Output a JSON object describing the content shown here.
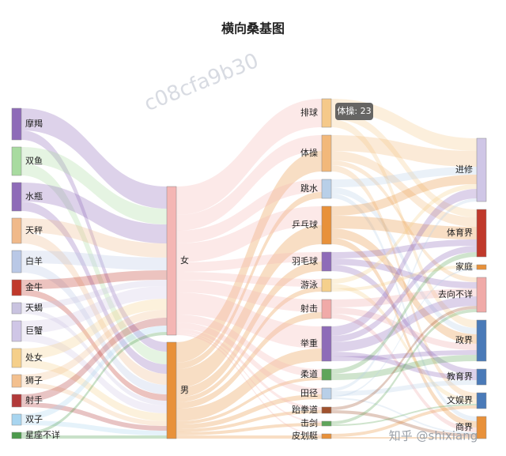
{
  "chart_data": {
    "type": "sankey",
    "title": "横向桑基图",
    "tooltip": "体操: 23",
    "watermarks": [
      "c08cfa9b30",
      "知乎 @shixiang"
    ],
    "nodes": [
      {
        "name": "摩羯",
        "color": "#8e6bb8"
      },
      {
        "name": "双鱼",
        "color": "#a8dba0"
      },
      {
        "name": "水瓶",
        "color": "#8e6bb8"
      },
      {
        "name": "天秤",
        "color": "#f0b98a"
      },
      {
        "name": "白羊",
        "color": "#b9c8e6"
      },
      {
        "name": "金牛",
        "color": "#c0392b"
      },
      {
        "name": "天蝎",
        "color": "#c9c3e0"
      },
      {
        "name": "巨蟹",
        "color": "#cfc6e6"
      },
      {
        "name": "处女",
        "color": "#f5cf8a"
      },
      {
        "name": "狮子",
        "color": "#f3c08f"
      },
      {
        "name": "射手",
        "color": "#b23a3a"
      },
      {
        "name": "双子",
        "color": "#a8d5f0"
      },
      {
        "name": "星座不详",
        "color": "#4c9a4c"
      },
      {
        "name": "女",
        "color": "#f4b6b4"
      },
      {
        "name": "男",
        "color": "#e8913a"
      },
      {
        "name": "排球",
        "color": "#f5c98a"
      },
      {
        "name": "体操",
        "color": "#f2b87a"
      },
      {
        "name": "跳水",
        "color": "#b8cfe8"
      },
      {
        "name": "乒乓球",
        "color": "#e8913a"
      },
      {
        "name": "羽毛球",
        "color": "#8e6bb8"
      },
      {
        "name": "游泳",
        "color": "#f5d08c"
      },
      {
        "name": "射击",
        "color": "#f0aaa8"
      },
      {
        "name": "举重",
        "color": "#8e6bb8"
      },
      {
        "name": "柔道",
        "color": "#5fa55a"
      },
      {
        "name": "田径",
        "color": "#b8cfe8"
      },
      {
        "name": "跆拳道",
        "color": "#a0522d"
      },
      {
        "name": "击剑",
        "color": "#5fa55a"
      },
      {
        "name": "皮划艇",
        "color": "#e8913a"
      },
      {
        "name": "进修",
        "color": "#cfc6e6"
      },
      {
        "name": "体育界",
        "color": "#c0392b"
      },
      {
        "name": "家庭",
        "color": "#e8913a"
      },
      {
        "name": "去向不详",
        "color": "#f0aaa8"
      },
      {
        "name": "政界",
        "color": "#4a7ab8"
      },
      {
        "name": "教育界",
        "color": "#4a7ab8"
      },
      {
        "name": "文娱界",
        "color": "#4a7ab8"
      },
      {
        "name": "商界",
        "color": "#e8913a"
      }
    ],
    "links": [
      {
        "source": "摩羯",
        "target": "女",
        "value": 14
      },
      {
        "source": "摩羯",
        "target": "男",
        "value": 6
      },
      {
        "source": "双鱼",
        "target": "女",
        "value": 10
      },
      {
        "source": "双鱼",
        "target": "男",
        "value": 8
      },
      {
        "source": "水瓶",
        "target": "女",
        "value": 12
      },
      {
        "source": "水瓶",
        "target": "男",
        "value": 6
      },
      {
        "source": "天秤",
        "target": "女",
        "value": 9
      },
      {
        "source": "天秤",
        "target": "男",
        "value": 7
      },
      {
        "source": "白羊",
        "target": "女",
        "value": 8
      },
      {
        "source": "白羊",
        "target": "男",
        "value": 6
      },
      {
        "source": "金牛",
        "target": "女",
        "value": 6
      },
      {
        "source": "金牛",
        "target": "男",
        "value": 4
      },
      {
        "source": "天蝎",
        "target": "女",
        "value": 4
      },
      {
        "source": "天蝎",
        "target": "男",
        "value": 3
      },
      {
        "source": "巨蟹",
        "target": "女",
        "value": 8
      },
      {
        "source": "巨蟹",
        "target": "男",
        "value": 5
      },
      {
        "source": "处女",
        "target": "女",
        "value": 7
      },
      {
        "source": "处女",
        "target": "男",
        "value": 5
      },
      {
        "source": "狮子",
        "target": "女",
        "value": 5
      },
      {
        "source": "狮子",
        "target": "男",
        "value": 3
      },
      {
        "source": "射手",
        "target": "女",
        "value": 5
      },
      {
        "source": "射手",
        "target": "男",
        "value": 3
      },
      {
        "source": "双子",
        "target": "女",
        "value": 4
      },
      {
        "source": "双子",
        "target": "男",
        "value": 3
      },
      {
        "source": "星座不详",
        "target": "女",
        "value": 2
      },
      {
        "source": "星座不详",
        "target": "男",
        "value": 2
      },
      {
        "source": "女",
        "target": "排球",
        "value": 18
      },
      {
        "source": "女",
        "target": "体操",
        "value": 10
      },
      {
        "source": "男",
        "target": "体操",
        "value": 13
      },
      {
        "source": "女",
        "target": "跳水",
        "value": 8
      },
      {
        "source": "男",
        "target": "跳水",
        "value": 4
      },
      {
        "source": "女",
        "target": "乒乓球",
        "value": 12
      },
      {
        "source": "男",
        "target": "乒乓球",
        "value": 12
      },
      {
        "source": "女",
        "target": "羽毛球",
        "value": 6
      },
      {
        "source": "男",
        "target": "羽毛球",
        "value": 6
      },
      {
        "source": "女",
        "target": "游泳",
        "value": 5
      },
      {
        "source": "男",
        "target": "游泳",
        "value": 3
      },
      {
        "source": "女",
        "target": "射击",
        "value": 8
      },
      {
        "source": "男",
        "target": "射击",
        "value": 4
      },
      {
        "source": "女",
        "target": "举重",
        "value": 14
      },
      {
        "source": "男",
        "target": "举重",
        "value": 8
      },
      {
        "source": "女",
        "target": "柔道",
        "value": 5
      },
      {
        "source": "男",
        "target": "柔道",
        "value": 2
      },
      {
        "source": "女",
        "target": "田径",
        "value": 4
      },
      {
        "source": "男",
        "target": "田径",
        "value": 3
      },
      {
        "source": "女",
        "target": "跆拳道",
        "value": 2
      },
      {
        "source": "男",
        "target": "跆拳道",
        "value": 2
      },
      {
        "source": "女",
        "target": "击剑",
        "value": 1
      },
      {
        "source": "男",
        "target": "击剑",
        "value": 2
      },
      {
        "source": "女",
        "target": "皮划艇",
        "value": 1
      },
      {
        "source": "男",
        "target": "皮划艇",
        "value": 2
      },
      {
        "source": "排球",
        "target": "进修",
        "value": 8
      },
      {
        "source": "排球",
        "target": "体育界",
        "value": 5
      },
      {
        "source": "排球",
        "target": "政界",
        "value": 5
      },
      {
        "source": "体操",
        "target": "进修",
        "value": 10
      },
      {
        "source": "体操",
        "target": "体育界",
        "value": 6
      },
      {
        "source": "体操",
        "target": "去向不详",
        "value": 3
      },
      {
        "source": "体操",
        "target": "文娱界",
        "value": 4
      },
      {
        "source": "跳水",
        "target": "进修",
        "value": 5
      },
      {
        "source": "跳水",
        "target": "政界",
        "value": 4
      },
      {
        "source": "跳水",
        "target": "商界",
        "value": 3
      },
      {
        "source": "乒乓球",
        "target": "进修",
        "value": 6
      },
      {
        "source": "乒乓球",
        "target": "体育界",
        "value": 8
      },
      {
        "source": "乒乓球",
        "target": "政界",
        "value": 6
      },
      {
        "source": "乒乓球",
        "target": "商界",
        "value": 4
      },
      {
        "source": "羽毛球",
        "target": "体育界",
        "value": 4
      },
      {
        "source": "羽毛球",
        "target": "去向不详",
        "value": 4
      },
      {
        "source": "羽毛球",
        "target": "教育界",
        "value": 4
      },
      {
        "source": "游泳",
        "target": "进修",
        "value": 3
      },
      {
        "source": "游泳",
        "target": "文娱界",
        "value": 3
      },
      {
        "source": "游泳",
        "target": "家庭",
        "value": 2
      },
      {
        "source": "射击",
        "target": "去向不详",
        "value": 5
      },
      {
        "source": "射击",
        "target": "政界",
        "value": 4
      },
      {
        "source": "射击",
        "target": "商界",
        "value": 3
      },
      {
        "source": "举重",
        "target": "进修",
        "value": 6
      },
      {
        "source": "举重",
        "target": "体育界",
        "value": 4
      },
      {
        "source": "举重",
        "target": "去向不详",
        "value": 6
      },
      {
        "source": "举重",
        "target": "教育界",
        "value": 3
      },
      {
        "source": "举重",
        "target": "政界",
        "value": 3
      },
      {
        "source": "柔道",
        "target": "体育界",
        "value": 3
      },
      {
        "source": "柔道",
        "target": "政界",
        "value": 4
      },
      {
        "source": "田径",
        "target": "进修",
        "value": 2
      },
      {
        "source": "田径",
        "target": "教育界",
        "value": 3
      },
      {
        "source": "田径",
        "target": "家庭",
        "value": 1
      },
      {
        "source": "田径",
        "target": "商界",
        "value": 1
      },
      {
        "source": "跆拳道",
        "target": "去向不详",
        "value": 2
      },
      {
        "source": "跆拳道",
        "target": "商界",
        "value": 2
      },
      {
        "source": "击剑",
        "target": "去向不详",
        "value": 2
      },
      {
        "source": "击剑",
        "target": "文娱界",
        "value": 1
      },
      {
        "source": "皮划艇",
        "target": "文娱界",
        "value": 2
      },
      {
        "source": "皮划艇",
        "target": "商界",
        "value": 1
      }
    ]
  }
}
